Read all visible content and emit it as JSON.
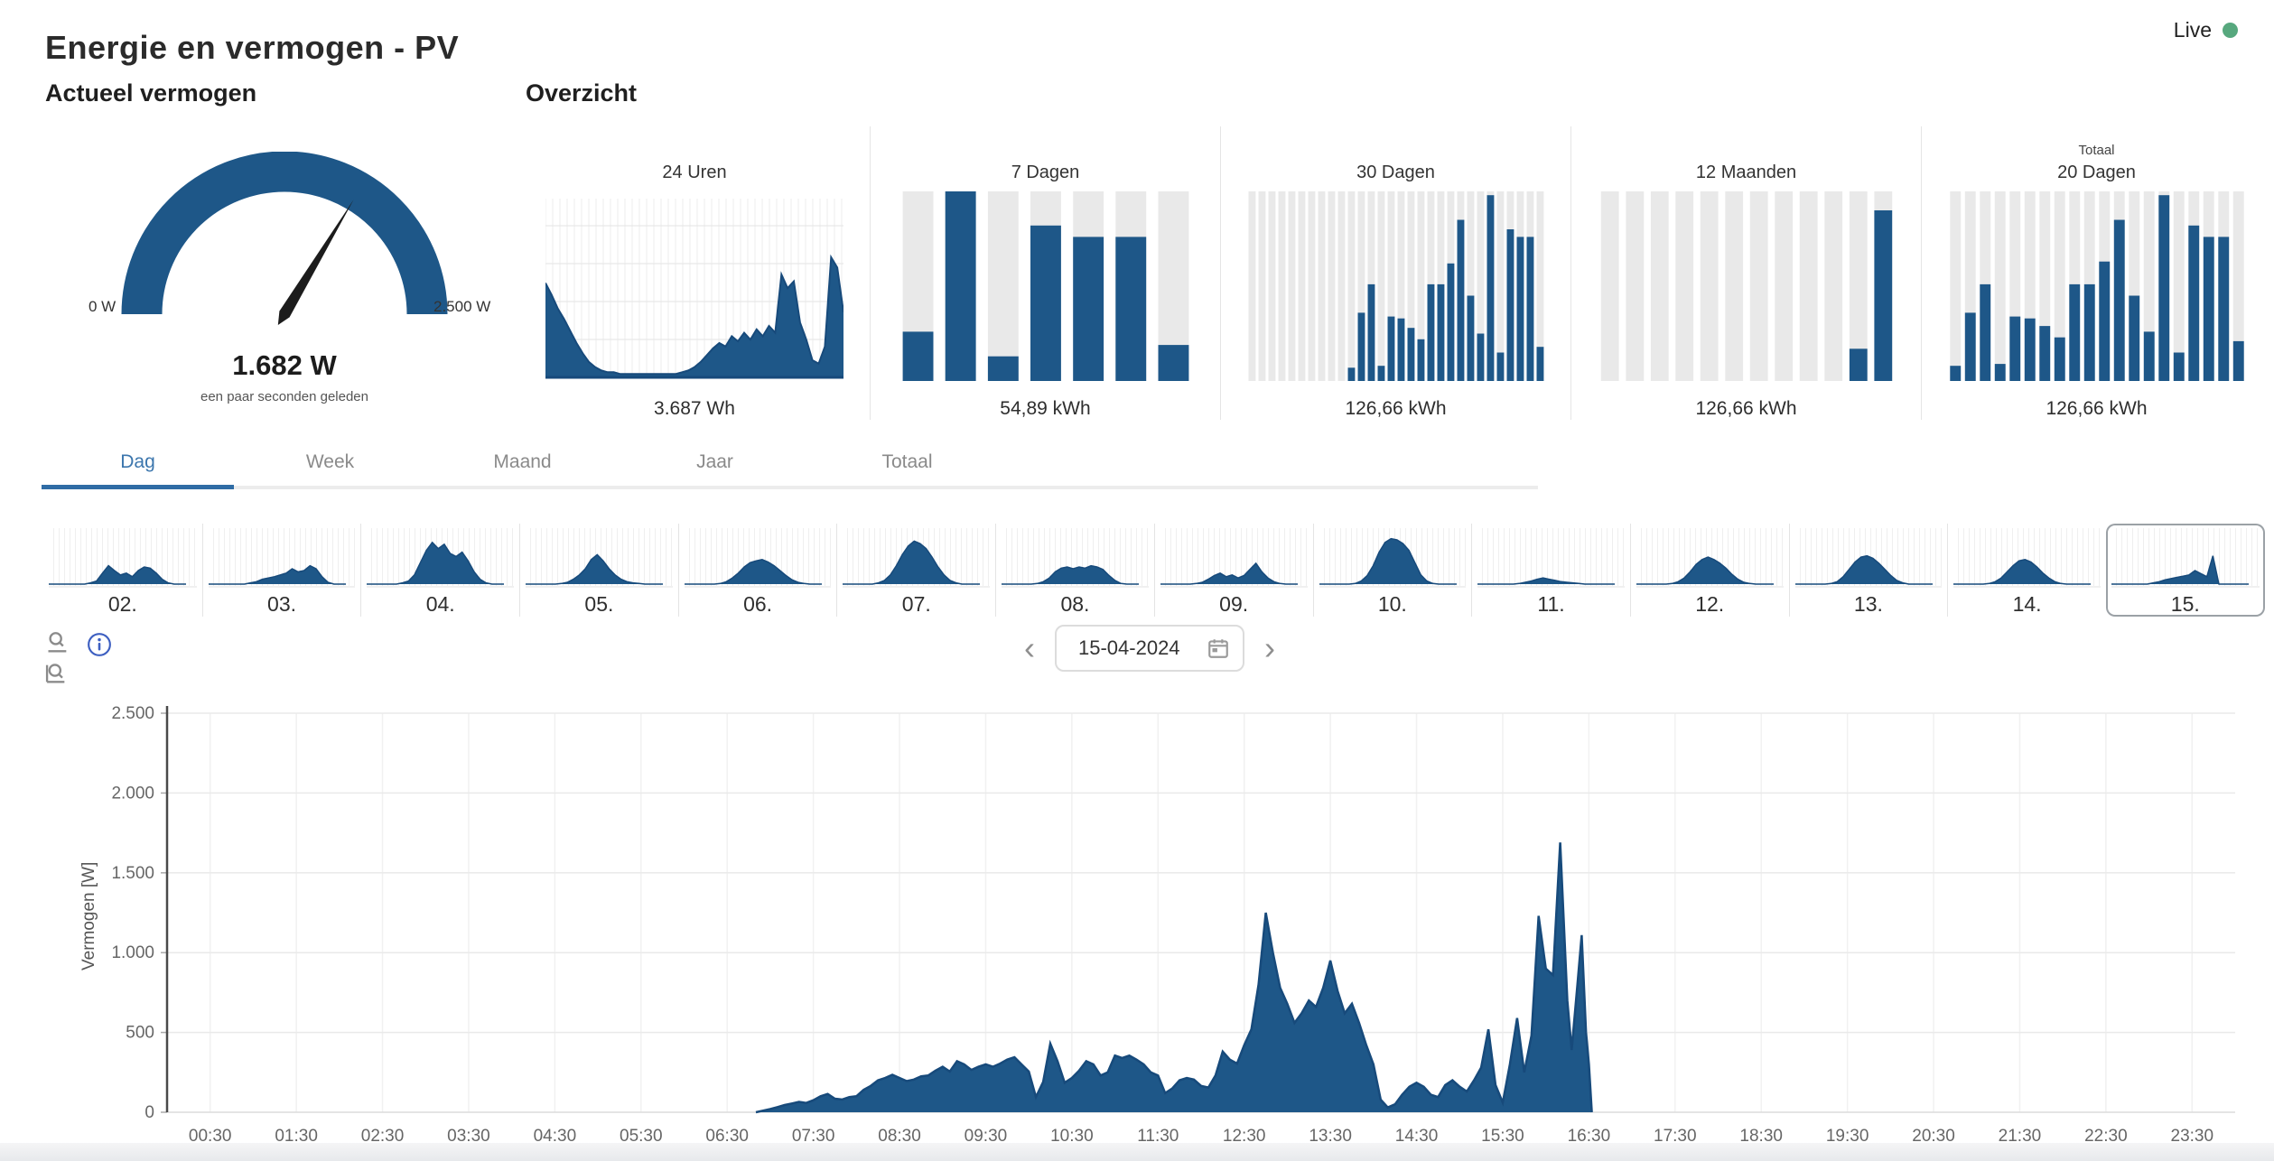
{
  "header": {
    "title": "Energie en vermogen - PV",
    "live_label": "Live"
  },
  "sections": {
    "gauge_title": "Actueel vermogen",
    "overview_title": "Overzicht"
  },
  "tabs": [
    {
      "label": "Dag",
      "active": true
    },
    {
      "label": "Week",
      "active": false
    },
    {
      "label": "Maand",
      "active": false
    },
    {
      "label": "Jaar",
      "active": false
    },
    {
      "label": "Totaal",
      "active": false
    }
  ],
  "datebar": {
    "value": "15-04-2024",
    "prev_icon": "‹",
    "next_icon": "›"
  },
  "colors": {
    "primary": "#1e5788",
    "primary_dark": "#174a7b",
    "bar_bg": "#e9e9e9",
    "accent_tab": "#2f6ca5",
    "live_dot": "#57a87e",
    "grid_light": "#f1f1f1",
    "grid": "#eaeaea",
    "axis": "#4a4a4a",
    "tick_text": "#666666",
    "info": "#3d5fc1",
    "icon_gray": "#8f8f8f"
  },
  "chart_data": [
    {
      "id": "gauge",
      "type": "gauge",
      "value": 1682,
      "min": 0,
      "max": 2500,
      "value_label": "1.682 W",
      "min_label": "0 W",
      "max_label": "2.500 W",
      "updated": "een paar seconden geleden"
    },
    {
      "id": "overview-24h",
      "type": "area",
      "title": "24 Uren",
      "value_label": "3.687 Wh",
      "profile_pct": [
        55,
        48,
        40,
        34,
        27,
        20,
        14,
        9,
        6,
        4,
        3,
        3,
        2,
        2,
        2,
        2,
        2,
        2,
        2,
        2,
        2,
        2,
        3,
        4,
        6,
        9,
        13,
        17,
        20,
        18,
        24,
        21,
        26,
        22,
        28,
        24,
        30,
        26,
        60,
        52,
        56,
        32,
        22,
        10,
        8,
        18,
        70,
        64,
        38
      ]
    },
    {
      "id": "overview-7d",
      "type": "bar",
      "title": "7 Dagen",
      "value_label": "54,89 kWh",
      "values_pct": [
        26,
        100,
        13,
        82,
        76,
        76,
        19
      ]
    },
    {
      "id": "overview-30d",
      "type": "bar",
      "title": "30 Dagen",
      "value_label": "126,66 kWh",
      "values_pct": [
        0,
        0,
        0,
        0,
        0,
        0,
        0,
        0,
        0,
        0,
        7,
        36,
        51,
        8,
        34,
        33,
        28,
        22,
        51,
        51,
        62,
        85,
        45,
        25,
        98,
        15,
        80,
        76,
        76,
        18
      ]
    },
    {
      "id": "overview-12m",
      "type": "bar",
      "title": "12 Maanden",
      "value_label": "126,66 kWh",
      "values_pct": [
        0,
        0,
        0,
        0,
        0,
        0,
        0,
        0,
        0,
        0,
        17,
        90
      ]
    },
    {
      "id": "overview-total",
      "type": "bar",
      "subtitle": "Totaal",
      "title": "20 Dagen",
      "value_label": "126,66 kWh",
      "values_pct": [
        8,
        36,
        51,
        9,
        34,
        33,
        29,
        23,
        51,
        51,
        63,
        85,
        45,
        26,
        98,
        15,
        82,
        76,
        76,
        21
      ]
    },
    {
      "id": "day-strip",
      "type": "area-strip",
      "selected": "15.",
      "days": [
        {
          "label": "02.",
          "profile_pct": [
            0,
            0,
            0,
            0,
            0,
            0,
            0,
            2,
            5,
            18,
            30,
            22,
            15,
            18,
            12,
            22,
            28,
            26,
            18,
            8,
            2,
            0,
            0,
            0
          ]
        },
        {
          "label": "03.",
          "profile_pct": [
            0,
            0,
            0,
            0,
            0,
            0,
            0,
            2,
            4,
            8,
            10,
            12,
            15,
            18,
            25,
            20,
            22,
            30,
            25,
            12,
            3,
            0,
            0,
            0
          ]
        },
        {
          "label": "04.",
          "profile_pct": [
            0,
            0,
            0,
            0,
            0,
            0,
            2,
            5,
            15,
            35,
            55,
            68,
            58,
            65,
            50,
            45,
            52,
            38,
            20,
            8,
            2,
            0,
            0,
            0
          ]
        },
        {
          "label": "05.",
          "profile_pct": [
            0,
            0,
            0,
            0,
            0,
            0,
            1,
            3,
            8,
            15,
            25,
            40,
            48,
            38,
            25,
            15,
            8,
            4,
            2,
            1,
            0,
            0,
            0,
            0
          ]
        },
        {
          "label": "06.",
          "profile_pct": [
            0,
            0,
            0,
            0,
            0,
            0,
            1,
            4,
            10,
            18,
            28,
            35,
            38,
            40,
            36,
            30,
            22,
            14,
            7,
            3,
            1,
            0,
            0,
            0
          ]
        },
        {
          "label": "07.",
          "profile_pct": [
            0,
            0,
            0,
            0,
            0,
            0,
            2,
            6,
            15,
            30,
            48,
            62,
            70,
            66,
            58,
            44,
            28,
            15,
            6,
            2,
            0,
            0,
            0,
            0
          ]
        },
        {
          "label": "08.",
          "profile_pct": [
            0,
            0,
            0,
            0,
            0,
            0,
            1,
            4,
            10,
            20,
            26,
            28,
            25,
            28,
            26,
            30,
            28,
            24,
            14,
            6,
            1,
            0,
            0,
            0
          ]
        },
        {
          "label": "09.",
          "profile_pct": [
            0,
            0,
            0,
            0,
            0,
            0,
            1,
            3,
            8,
            14,
            18,
            12,
            15,
            10,
            14,
            24,
            34,
            20,
            10,
            4,
            1,
            0,
            0,
            0
          ]
        },
        {
          "label": "10.",
          "profile_pct": [
            0,
            0,
            0,
            0,
            0,
            0,
            1,
            5,
            14,
            30,
            52,
            68,
            74,
            72,
            66,
            55,
            35,
            15,
            5,
            1,
            0,
            0,
            0,
            0
          ]
        },
        {
          "label": "11.",
          "profile_pct": [
            0,
            0,
            0,
            0,
            0,
            0,
            0,
            1,
            3,
            5,
            8,
            10,
            8,
            6,
            4,
            3,
            2,
            1,
            0,
            0,
            0,
            0,
            0,
            0
          ]
        },
        {
          "label": "12.",
          "profile_pct": [
            0,
            0,
            0,
            0,
            0,
            0,
            1,
            4,
            10,
            20,
            32,
            40,
            44,
            40,
            34,
            26,
            16,
            8,
            3,
            1,
            0,
            0,
            0,
            0
          ]
        },
        {
          "label": "13.",
          "profile_pct": [
            0,
            0,
            0,
            0,
            0,
            0,
            1,
            4,
            12,
            24,
            36,
            44,
            46,
            42,
            34,
            24,
            14,
            6,
            2,
            0,
            0,
            0,
            0,
            0
          ]
        },
        {
          "label": "14.",
          "profile_pct": [
            0,
            0,
            0,
            0,
            0,
            0,
            1,
            4,
            10,
            20,
            30,
            38,
            40,
            36,
            28,
            18,
            10,
            4,
            1,
            0,
            0,
            0,
            0,
            0
          ]
        },
        {
          "label": "15.",
          "profile_pct": [
            0,
            0,
            0,
            0,
            0,
            0,
            0,
            2,
            4,
            7,
            9,
            11,
            13,
            15,
            22,
            17,
            12,
            46,
            0,
            0,
            0,
            0,
            0,
            0
          ]
        }
      ]
    },
    {
      "id": "main",
      "type": "area",
      "ylabel": "Vermogen [W]",
      "ylim": [
        0,
        2500
      ],
      "y_ticks": [
        {
          "v": 0,
          "label": "0"
        },
        {
          "v": 500,
          "label": "500"
        },
        {
          "v": 1000,
          "label": "1.000"
        },
        {
          "v": 1500,
          "label": "1.500"
        },
        {
          "v": 2000,
          "label": "2.000"
        },
        {
          "v": 2500,
          "label": "2.500"
        }
      ],
      "x_labels": [
        "00:30",
        "01:30",
        "02:30",
        "03:30",
        "04:30",
        "05:30",
        "06:30",
        "07:30",
        "08:30",
        "09:30",
        "10:30",
        "11:30",
        "12:30",
        "13:30",
        "14:30",
        "15:30",
        "16:30",
        "17:30",
        "18:30",
        "19:30",
        "20:30",
        "21:30",
        "22:30",
        "23:30"
      ],
      "series": [
        [
          "06:50",
          0
        ],
        [
          "06:55",
          10
        ],
        [
          "07:00",
          20
        ],
        [
          "07:05",
          32
        ],
        [
          "07:10",
          45
        ],
        [
          "07:15",
          55
        ],
        [
          "07:20",
          65
        ],
        [
          "07:25",
          58
        ],
        [
          "07:30",
          75
        ],
        [
          "07:35",
          100
        ],
        [
          "07:40",
          115
        ],
        [
          "07:45",
          85
        ],
        [
          "07:50",
          80
        ],
        [
          "07:55",
          95
        ],
        [
          "08:00",
          100
        ],
        [
          "08:05",
          140
        ],
        [
          "08:10",
          165
        ],
        [
          "08:15",
          200
        ],
        [
          "08:20",
          215
        ],
        [
          "08:25",
          235
        ],
        [
          "08:30",
          215
        ],
        [
          "08:35",
          195
        ],
        [
          "08:40",
          205
        ],
        [
          "08:45",
          225
        ],
        [
          "08:50",
          230
        ],
        [
          "08:55",
          260
        ],
        [
          "09:00",
          285
        ],
        [
          "09:05",
          255
        ],
        [
          "09:10",
          320
        ],
        [
          "09:15",
          300
        ],
        [
          "09:20",
          265
        ],
        [
          "09:25",
          285
        ],
        [
          "09:30",
          300
        ],
        [
          "09:35",
          285
        ],
        [
          "09:40",
          305
        ],
        [
          "09:45",
          330
        ],
        [
          "09:50",
          345
        ],
        [
          "09:55",
          300
        ],
        [
          "10:00",
          255
        ],
        [
          "10:05",
          95
        ],
        [
          "10:10",
          190
        ],
        [
          "10:15",
          430
        ],
        [
          "10:20",
          320
        ],
        [
          "10:25",
          185
        ],
        [
          "10:30",
          215
        ],
        [
          "10:35",
          260
        ],
        [
          "10:40",
          320
        ],
        [
          "10:45",
          300
        ],
        [
          "10:50",
          230
        ],
        [
          "10:55",
          250
        ],
        [
          "11:00",
          355
        ],
        [
          "11:05",
          340
        ],
        [
          "11:10",
          355
        ],
        [
          "11:15",
          330
        ],
        [
          "11:20",
          300
        ],
        [
          "11:25",
          250
        ],
        [
          "11:30",
          230
        ],
        [
          "11:35",
          120
        ],
        [
          "11:40",
          150
        ],
        [
          "11:45",
          200
        ],
        [
          "11:50",
          215
        ],
        [
          "11:55",
          205
        ],
        [
          "12:00",
          165
        ],
        [
          "12:05",
          155
        ],
        [
          "12:10",
          230
        ],
        [
          "12:15",
          380
        ],
        [
          "12:20",
          330
        ],
        [
          "12:25",
          305
        ],
        [
          "12:30",
          420
        ],
        [
          "12:35",
          520
        ],
        [
          "12:40",
          800
        ],
        [
          "12:45",
          1250
        ],
        [
          "12:50",
          1000
        ],
        [
          "12:55",
          780
        ],
        [
          "13:00",
          680
        ],
        [
          "13:05",
          560
        ],
        [
          "13:10",
          620
        ],
        [
          "13:15",
          700
        ],
        [
          "13:20",
          660
        ],
        [
          "13:25",
          780
        ],
        [
          "13:30",
          950
        ],
        [
          "13:35",
          760
        ],
        [
          "13:40",
          620
        ],
        [
          "13:45",
          680
        ],
        [
          "13:50",
          560
        ],
        [
          "13:55",
          420
        ],
        [
          "14:00",
          300
        ],
        [
          "14:05",
          80
        ],
        [
          "14:10",
          30
        ],
        [
          "14:15",
          50
        ],
        [
          "14:20",
          110
        ],
        [
          "14:25",
          160
        ],
        [
          "14:30",
          185
        ],
        [
          "14:35",
          160
        ],
        [
          "14:40",
          110
        ],
        [
          "14:45",
          95
        ],
        [
          "14:50",
          170
        ],
        [
          "14:55",
          200
        ],
        [
          "15:00",
          160
        ],
        [
          "15:05",
          130
        ],
        [
          "15:10",
          200
        ],
        [
          "15:15",
          280
        ],
        [
          "15:20",
          520
        ],
        [
          "15:25",
          170
        ],
        [
          "15:30",
          60
        ],
        [
          "15:35",
          300
        ],
        [
          "15:40",
          590
        ],
        [
          "15:45",
          250
        ],
        [
          "15:50",
          480
        ],
        [
          "15:55",
          1230
        ],
        [
          "16:00",
          900
        ],
        [
          "16:05",
          860
        ],
        [
          "16:10",
          1690
        ],
        [
          "16:15",
          700
        ],
        [
          "16:18",
          390
        ],
        [
          "16:22",
          800
        ],
        [
          "16:25",
          1110
        ],
        [
          "16:28",
          500
        ],
        [
          "16:30",
          300
        ],
        [
          "16:32",
          0
        ]
      ]
    }
  ]
}
